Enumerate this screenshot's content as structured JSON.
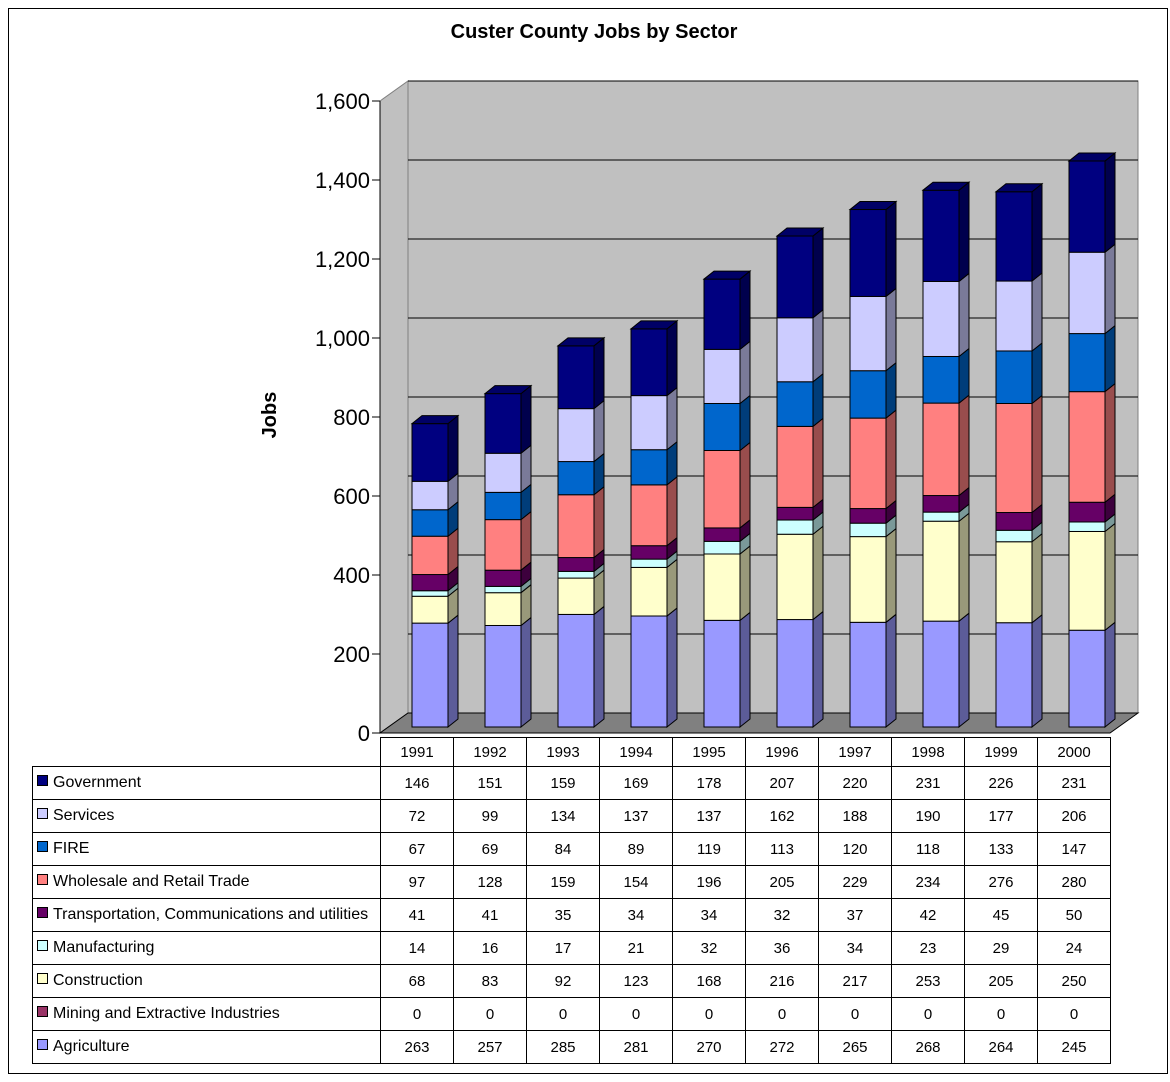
{
  "chart_data": {
    "type": "stacked-bar-3d",
    "title": "Custer County Jobs by Sector",
    "ylabel": "Jobs",
    "categories": [
      "1991",
      "1992",
      "1993",
      "1994",
      "1995",
      "1996",
      "1997",
      "1998",
      "1999",
      "2000"
    ],
    "ylim": [
      0,
      1600
    ],
    "yticks": [
      0,
      200,
      400,
      600,
      800,
      {
        "value": 1000,
        "label": "1,000"
      },
      {
        "value": 1200,
        "label": "1,200"
      },
      {
        "value": 1400,
        "label": "1,400"
      },
      {
        "value": 1600,
        "label": "1,600"
      }
    ],
    "grid": true,
    "series": [
      {
        "name": "Agriculture",
        "color": "#9999ff",
        "values": [
          263,
          257,
          285,
          281,
          270,
          272,
          265,
          268,
          264,
          245
        ]
      },
      {
        "name": "Mining and Extractive Industries",
        "color": "#993366",
        "values": [
          0,
          0,
          0,
          0,
          0,
          0,
          0,
          0,
          0,
          0
        ]
      },
      {
        "name": "Construction",
        "color": "#ffffcc",
        "values": [
          68,
          83,
          92,
          123,
          168,
          216,
          217,
          253,
          205,
          250
        ]
      },
      {
        "name": "Manufacturing",
        "color": "#ccffff",
        "values": [
          14,
          16,
          17,
          21,
          32,
          36,
          34,
          23,
          29,
          24
        ]
      },
      {
        "name": "Transportation, Communications and utilities",
        "color": "#660066",
        "values": [
          41,
          41,
          35,
          34,
          34,
          32,
          37,
          42,
          45,
          50
        ]
      },
      {
        "name": "Wholesale and Retail Trade",
        "color": "#ff8080",
        "values": [
          97,
          128,
          159,
          154,
          196,
          205,
          229,
          234,
          276,
          280
        ]
      },
      {
        "name": "FIRE",
        "color": "#0066cc",
        "values": [
          67,
          69,
          84,
          89,
          119,
          113,
          120,
          118,
          133,
          147
        ]
      },
      {
        "name": "Services",
        "color": "#ccccff",
        "values": [
          72,
          99,
          134,
          137,
          137,
          162,
          188,
          190,
          177,
          206
        ]
      },
      {
        "name": "Government",
        "color": "#000080",
        "values": [
          146,
          151,
          159,
          169,
          178,
          207,
          220,
          231,
          226,
          231
        ]
      }
    ]
  }
}
